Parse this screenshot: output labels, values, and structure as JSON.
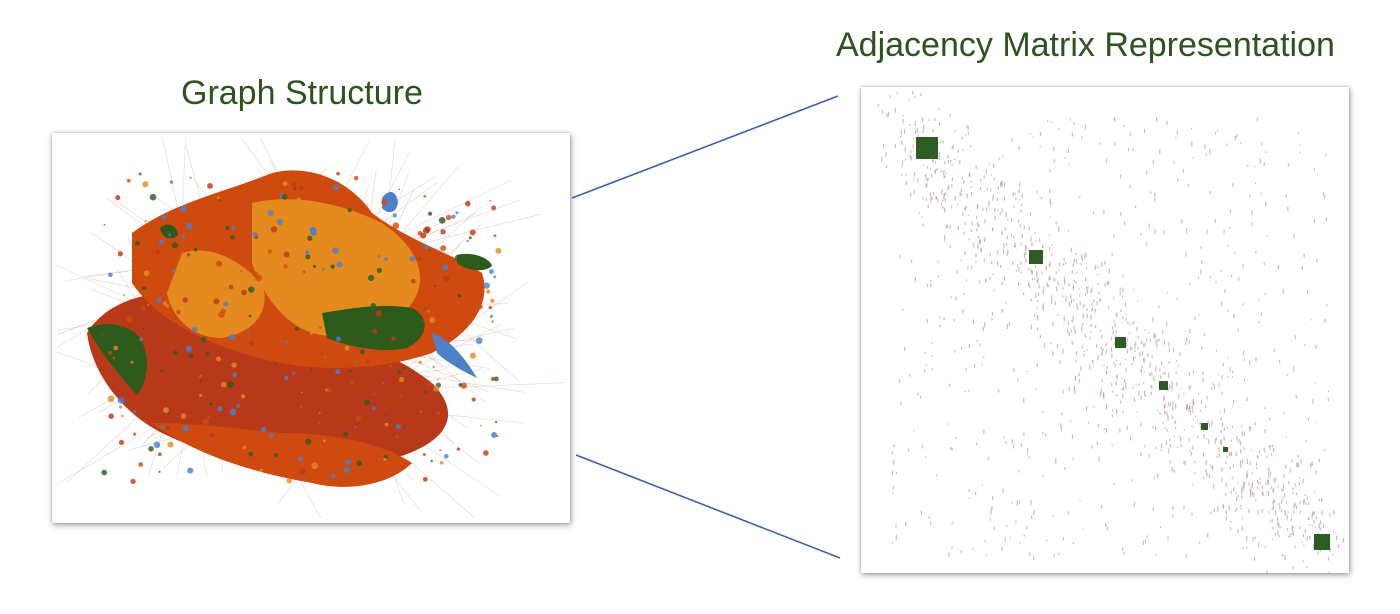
{
  "titles": {
    "graph": "Graph Structure",
    "matrix": "Adjacency Matrix Representation"
  },
  "colors": {
    "title": "#2e5220",
    "connector": "#3f62a6",
    "community_orange": "#e58a1f",
    "community_darkorange": "#cf4a0f",
    "community_rust": "#b8391a",
    "community_green": "#2d5a1b",
    "community_blue": "#4e80c8",
    "edge": "#c99a8f",
    "matrix_dot": "#b07f82",
    "matrix_block": "#2f5b25"
  },
  "graph_panel": {
    "icon": "force-directed-network-visualization"
  },
  "matrix_panel": {
    "icon": "adjacency-matrix-visualization"
  }
}
